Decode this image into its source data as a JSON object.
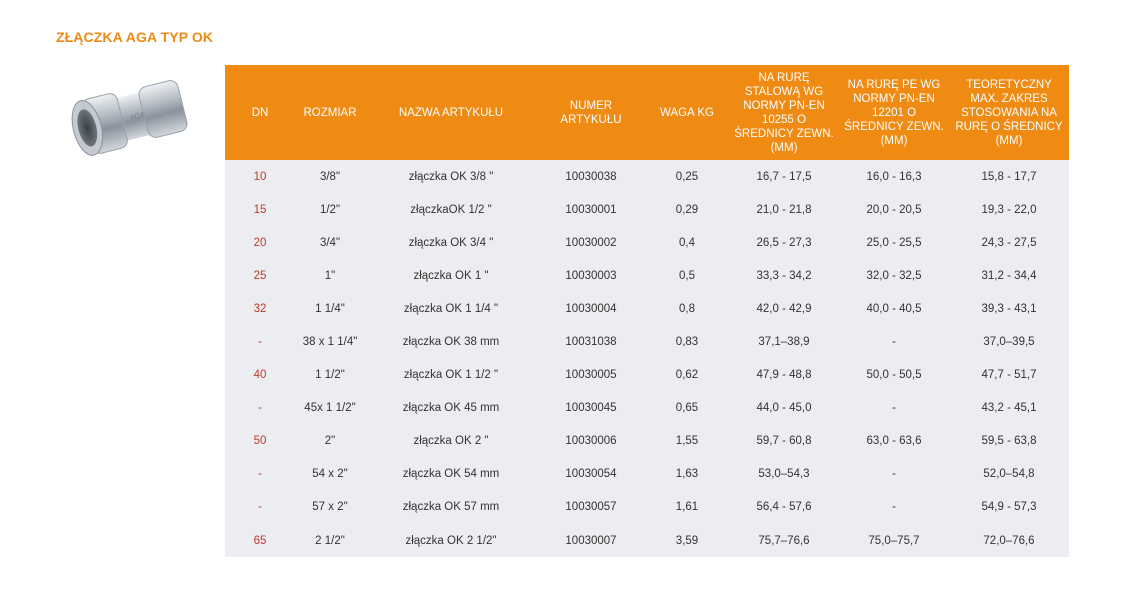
{
  "title": "ZŁĄCZKA AGA TYP OK",
  "image": {
    "icon": "pipe-coupling-image"
  },
  "columns": [
    "DN",
    "ROZMIAR",
    "NAZWA ARTYKUŁU",
    "NUMER ARTYKUŁU",
    "WAGA KG",
    "NA RURĘ STALOWĄ WG NORMY PN-EN 10255 O ŚREDNICY ZEWN. (MM)",
    "NA RURĘ PE WG NORMY PN-EN 12201 O ŚREDNICY ZEWN. (MM)",
    "TEORETYCZNY MAX. ZAKRES STOSOWANIA NA RURĘ O ŚREDNICY (MM)"
  ],
  "rows": [
    [
      "10",
      "3/8\"",
      "złączka OK 3/8 \"",
      "10030038",
      "0,25",
      "16,7 - 17,5",
      "16,0 - 16,3",
      "15,8 - 17,7"
    ],
    [
      "15",
      "1/2\"",
      "złączkaOK 1/2 \"",
      "10030001",
      "0,29",
      "21,0 - 21,8",
      "20,0 - 20,5",
      "19,3 - 22,0"
    ],
    [
      "20",
      "3/4\"",
      "złączka OK 3/4 \"",
      "10030002",
      "0,4",
      "26,5 - 27,3",
      "25,0 - 25,5",
      "24,3 - 27,5"
    ],
    [
      "25",
      "1\"",
      "złączka OK 1 \"",
      "10030003",
      "0,5",
      "33,3 - 34,2",
      "32,0 - 32,5",
      "31,2 - 34,4"
    ],
    [
      "32",
      "1 1/4\"",
      "złączka OK 1 1/4 \"",
      "10030004",
      "0,8",
      "42,0 - 42,9",
      "40,0 - 40,5",
      "39,3 - 43,1"
    ],
    [
      "-",
      "38 x 1 1/4\"",
      "złączka OK 38 mm",
      "10031038",
      "0,83",
      "37,1–38,9",
      "-",
      "37,0–39,5"
    ],
    [
      "40",
      "1 1/2\"",
      "złączka OK 1 1/2 \"",
      "10030005",
      "0,62",
      "47,9 - 48,8",
      "50,0 - 50,5",
      "47,7 - 51,7"
    ],
    [
      "-",
      "45x 1 1/2\"",
      "złączka OK 45 mm",
      "10030045",
      "0,65",
      "44,0 - 45,0",
      "-",
      "43,2 - 45,1"
    ],
    [
      "50",
      "2\"",
      "złączka OK 2 \"",
      "10030006",
      "1,55",
      "59,7 - 60,8",
      "63,0 - 63,6",
      "59,5 - 63,8"
    ],
    [
      "-",
      "54 x 2\"",
      "złączka OK 54 mm",
      "10030054",
      "1,63",
      "53,0–54,3",
      "-",
      "52,0–54,8"
    ],
    [
      "-",
      "57 x 2\"",
      "złączka OK 57 mm",
      "10030057",
      "1,61",
      "56,4 - 57,6",
      "-",
      "54,9 - 57,3"
    ],
    [
      "65",
      "2 1/2\"",
      "złączka OK 2 1/2\"",
      "10030007",
      "3,59",
      "75,7–76,6",
      "75,0–75,7",
      "72,0–76,6"
    ]
  ]
}
